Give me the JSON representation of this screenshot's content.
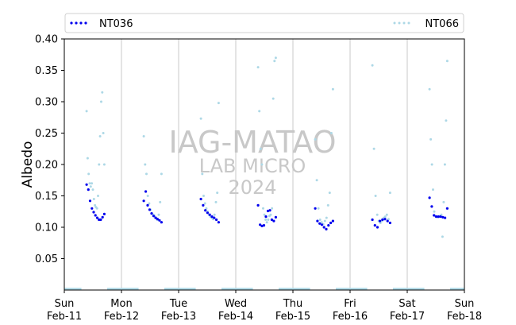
{
  "chart_data": {
    "type": "scatter",
    "ylabel": "Albedo",
    "xlabel": "",
    "ylim": [
      0,
      0.4
    ],
    "xlim": [
      "2024-02-11",
      "2024-02-18"
    ],
    "y_ticks": [
      0.05,
      0.1,
      0.15,
      0.2,
      0.25,
      0.3,
      0.35,
      0.4
    ],
    "y_tick_labels": [
      "0.05",
      "0.10",
      "0.15",
      "0.20",
      "0.25",
      "0.30",
      "0.35",
      "0.40"
    ],
    "x_ticks": [
      {
        "date": "2024-02-11",
        "day": "Sun",
        "label": "Feb-11"
      },
      {
        "date": "2024-02-12",
        "day": "Mon",
        "label": "Feb-12"
      },
      {
        "date": "2024-02-13",
        "day": "Tue",
        "label": "Feb-13"
      },
      {
        "date": "2024-02-14",
        "day": "Wed",
        "label": "Feb-14"
      },
      {
        "date": "2024-02-15",
        "day": "Thu",
        "label": "Feb-15"
      },
      {
        "date": "2024-02-16",
        "day": "Fri",
        "label": "Feb-16"
      },
      {
        "date": "2024-02-17",
        "day": "Sat",
        "label": "Feb-17"
      },
      {
        "date": "2024-02-18",
        "day": "Sun",
        "label": "Feb-18"
      }
    ],
    "grid": "vertical-at-day-boundaries",
    "legend_placement": "top (above plot)",
    "watermark": [
      "IAG-MATAO",
      "LAB MICRO",
      "2024"
    ],
    "series": [
      {
        "name": "NT036",
        "color": "#0000ee",
        "daily_profiles": [
          {
            "date": "2024-02-11",
            "values": [
              0.168,
              0.16,
              0.142,
              0.13,
              0.124,
              0.119,
              0.115,
              0.112,
              0.112,
              0.116,
              0.121
            ]
          },
          {
            "date": "2024-02-12",
            "values": [
              0.142,
              0.157,
              0.135,
              0.128,
              0.122,
              0.118,
              0.115,
              0.113,
              0.111,
              0.108
            ]
          },
          {
            "date": "2024-02-13",
            "values": [
              0.145,
              0.135,
              0.127,
              0.123,
              0.12,
              0.117,
              0.115,
              0.112,
              0.108
            ]
          },
          {
            "date": "2024-02-14",
            "values": [
              0.135,
              0.104,
              0.102,
              0.103,
              0.117,
              0.126,
              0.127,
              0.112,
              0.11,
              0.116
            ]
          },
          {
            "date": "2024-02-15",
            "values": [
              0.13,
              0.11,
              0.106,
              0.104,
              0.1,
              0.097,
              0.103,
              0.107,
              0.11
            ]
          },
          {
            "date": "2024-02-16",
            "values": [
              0.112,
              0.103,
              0.1,
              0.11,
              0.112,
              0.113,
              0.11,
              0.107
            ]
          },
          {
            "date": "2024-02-17",
            "values": [
              0.147,
              0.133,
              0.119,
              0.117,
              0.117,
              0.117,
              0.116,
              0.115,
              0.13
            ]
          }
        ]
      },
      {
        "name": "NT066",
        "color": "#add8e6",
        "daily_profiles": [
          {
            "date": "2024-02-11",
            "values": [
              0.285,
              0.21,
              0.185,
              0.17,
              0.165,
              0.17,
              0.16,
              0.145,
              0.135,
              0.132,
              0.13,
              0.15,
              0.2,
              0.245,
              0.3,
              0.315,
              0.25,
              0.2
            ]
          },
          {
            "date": "2024-02-12",
            "values": [
              0.245,
              0.2,
              0.185,
              0.15,
              0.138,
              0.128,
              0.122,
              0.12,
              0.118,
              0.115,
              0.112,
              0.12,
              0.14,
              0.185
            ]
          },
          {
            "date": "2024-02-13",
            "values": [
              0.273,
              0.185,
              0.15,
              0.138,
              0.13,
              0.125,
              0.12,
              0.117,
              0.115,
              0.113,
              0.12,
              0.14,
              0.155,
              0.298
            ]
          },
          {
            "date": "2024-02-14",
            "values": [
              0.355,
              0.285,
              0.225,
              0.2,
              0.13,
              0.12,
              0.112,
              0.108,
              0.112,
              0.118,
              0.12,
              0.13,
              0.305,
              0.365,
              0.37
            ]
          },
          {
            "date": "2024-02-15",
            "values": [
              0.24,
              0.175,
              0.13,
              0.112,
              0.108,
              0.105,
              0.11,
              0.115,
              0.135,
              0.155,
              0.25,
              0.32
            ]
          },
          {
            "date": "2024-02-16",
            "values": [
              0.358,
              0.225,
              0.15,
              0.12,
              0.11,
              0.107,
              0.11,
              0.115,
              0.117,
              0.12,
              0.113,
              0.155
            ]
          },
          {
            "date": "2024-02-17",
            "values": [
              0.32,
              0.24,
              0.2,
              0.16,
              0.125,
              0.118,
              0.117,
              0.116,
              0.117,
              0.118,
              0.12,
              0.085,
              0.14,
              0.2,
              0.27,
              0.365
            ]
          }
        ]
      }
    ]
  }
}
